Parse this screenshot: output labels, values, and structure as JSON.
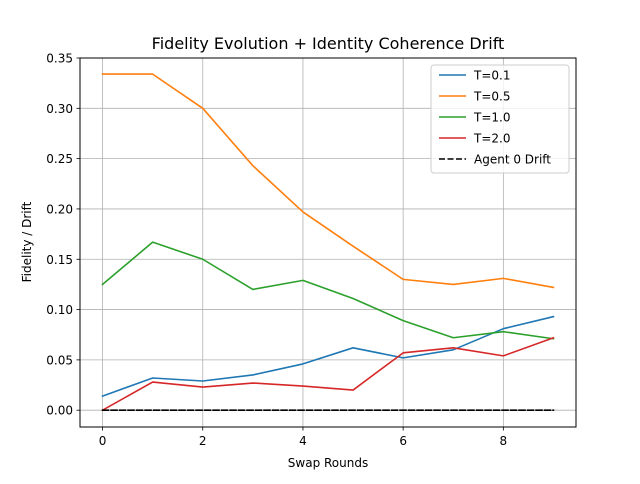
{
  "chart_data": {
    "type": "line",
    "title": "Fidelity Evolution + Identity Coherence Drift",
    "xlabel": "Swap Rounds",
    "ylabel": "Fidelity / Drift",
    "xlim": [
      -0.45,
      9.45
    ],
    "ylim": [
      -0.0167,
      0.35
    ],
    "xticks": [
      0,
      2,
      4,
      6,
      8
    ],
    "xtick_labels": [
      "0",
      "2",
      "4",
      "6",
      "8"
    ],
    "yticks": [
      0.0,
      0.05,
      0.1,
      0.15,
      0.2,
      0.25,
      0.3,
      0.35
    ],
    "ytick_labels": [
      "0.00",
      "0.05",
      "0.10",
      "0.15",
      "0.20",
      "0.25",
      "0.30",
      "0.35"
    ],
    "grid": true,
    "legend_position": "top-right",
    "x": [
      0,
      1,
      2,
      3,
      4,
      5,
      6,
      7,
      8,
      9
    ],
    "series": [
      {
        "name": "T=0.1",
        "color": "#1f77b4",
        "dash": "solid",
        "values": [
          0.014,
          0.032,
          0.029,
          0.035,
          0.046,
          0.062,
          0.052,
          0.06,
          0.081,
          0.093
        ]
      },
      {
        "name": "T=0.5",
        "color": "#ff7f0e",
        "dash": "solid",
        "values": [
          0.334,
          0.334,
          0.3,
          0.243,
          0.197,
          0.163,
          0.13,
          0.125,
          0.131,
          0.122
        ]
      },
      {
        "name": "T=1.0",
        "color": "#2ca02c",
        "dash": "solid",
        "values": [
          0.125,
          0.167,
          0.15,
          0.12,
          0.129,
          0.111,
          0.089,
          0.072,
          0.078,
          0.071
        ]
      },
      {
        "name": "T=2.0",
        "color": "#d62728",
        "dash": "solid",
        "values": [
          0.0,
          0.028,
          0.023,
          0.027,
          0.024,
          0.02,
          0.057,
          0.062,
          0.054,
          0.072
        ]
      },
      {
        "name": "Agent 0 Drift",
        "color": "#000000",
        "dash": "dashed",
        "values": [
          0.0,
          0.0,
          0.0,
          0.0,
          0.0,
          0.0,
          0.0,
          0.0,
          0.0,
          0.0
        ]
      }
    ]
  }
}
